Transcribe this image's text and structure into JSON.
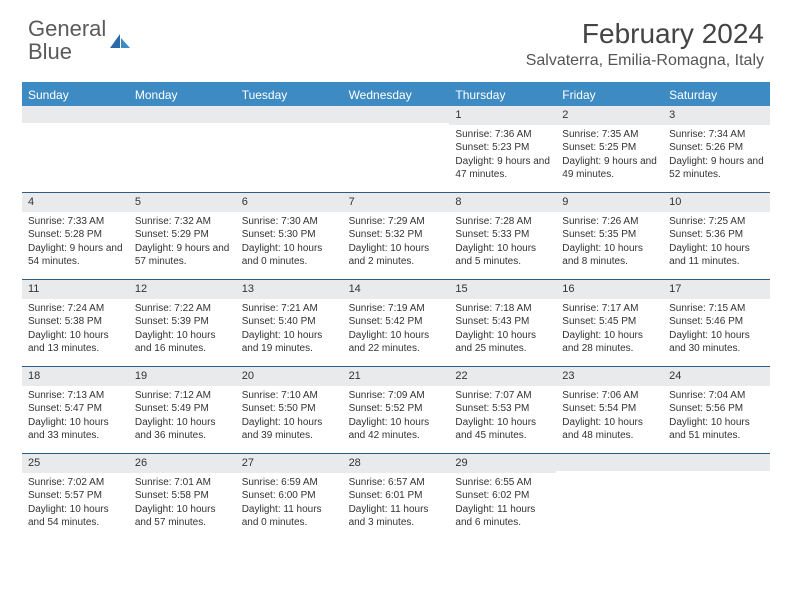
{
  "brand": {
    "word1": "General",
    "word2": "Blue"
  },
  "title": "February 2024",
  "location": "Salvaterra, Emilia-Romagna, Italy",
  "colors": {
    "header_bar": "#3e8bc4",
    "week_divider": "#2a5e8a",
    "daynum_bg": "#e8eaec",
    "text": "#333333",
    "brand_blue": "#3178b8"
  },
  "dow": [
    "Sunday",
    "Monday",
    "Tuesday",
    "Wednesday",
    "Thursday",
    "Friday",
    "Saturday"
  ],
  "weeks": [
    [
      {
        "n": "",
        "sr": "",
        "ss": "",
        "dl": ""
      },
      {
        "n": "",
        "sr": "",
        "ss": "",
        "dl": ""
      },
      {
        "n": "",
        "sr": "",
        "ss": "",
        "dl": ""
      },
      {
        "n": "",
        "sr": "",
        "ss": "",
        "dl": ""
      },
      {
        "n": "1",
        "sr": "Sunrise: 7:36 AM",
        "ss": "Sunset: 5:23 PM",
        "dl": "Daylight: 9 hours and 47 minutes."
      },
      {
        "n": "2",
        "sr": "Sunrise: 7:35 AM",
        "ss": "Sunset: 5:25 PM",
        "dl": "Daylight: 9 hours and 49 minutes."
      },
      {
        "n": "3",
        "sr": "Sunrise: 7:34 AM",
        "ss": "Sunset: 5:26 PM",
        "dl": "Daylight: 9 hours and 52 minutes."
      }
    ],
    [
      {
        "n": "4",
        "sr": "Sunrise: 7:33 AM",
        "ss": "Sunset: 5:28 PM",
        "dl": "Daylight: 9 hours and 54 minutes."
      },
      {
        "n": "5",
        "sr": "Sunrise: 7:32 AM",
        "ss": "Sunset: 5:29 PM",
        "dl": "Daylight: 9 hours and 57 minutes."
      },
      {
        "n": "6",
        "sr": "Sunrise: 7:30 AM",
        "ss": "Sunset: 5:30 PM",
        "dl": "Daylight: 10 hours and 0 minutes."
      },
      {
        "n": "7",
        "sr": "Sunrise: 7:29 AM",
        "ss": "Sunset: 5:32 PM",
        "dl": "Daylight: 10 hours and 2 minutes."
      },
      {
        "n": "8",
        "sr": "Sunrise: 7:28 AM",
        "ss": "Sunset: 5:33 PM",
        "dl": "Daylight: 10 hours and 5 minutes."
      },
      {
        "n": "9",
        "sr": "Sunrise: 7:26 AM",
        "ss": "Sunset: 5:35 PM",
        "dl": "Daylight: 10 hours and 8 minutes."
      },
      {
        "n": "10",
        "sr": "Sunrise: 7:25 AM",
        "ss": "Sunset: 5:36 PM",
        "dl": "Daylight: 10 hours and 11 minutes."
      }
    ],
    [
      {
        "n": "11",
        "sr": "Sunrise: 7:24 AM",
        "ss": "Sunset: 5:38 PM",
        "dl": "Daylight: 10 hours and 13 minutes."
      },
      {
        "n": "12",
        "sr": "Sunrise: 7:22 AM",
        "ss": "Sunset: 5:39 PM",
        "dl": "Daylight: 10 hours and 16 minutes."
      },
      {
        "n": "13",
        "sr": "Sunrise: 7:21 AM",
        "ss": "Sunset: 5:40 PM",
        "dl": "Daylight: 10 hours and 19 minutes."
      },
      {
        "n": "14",
        "sr": "Sunrise: 7:19 AM",
        "ss": "Sunset: 5:42 PM",
        "dl": "Daylight: 10 hours and 22 minutes."
      },
      {
        "n": "15",
        "sr": "Sunrise: 7:18 AM",
        "ss": "Sunset: 5:43 PM",
        "dl": "Daylight: 10 hours and 25 minutes."
      },
      {
        "n": "16",
        "sr": "Sunrise: 7:17 AM",
        "ss": "Sunset: 5:45 PM",
        "dl": "Daylight: 10 hours and 28 minutes."
      },
      {
        "n": "17",
        "sr": "Sunrise: 7:15 AM",
        "ss": "Sunset: 5:46 PM",
        "dl": "Daylight: 10 hours and 30 minutes."
      }
    ],
    [
      {
        "n": "18",
        "sr": "Sunrise: 7:13 AM",
        "ss": "Sunset: 5:47 PM",
        "dl": "Daylight: 10 hours and 33 minutes."
      },
      {
        "n": "19",
        "sr": "Sunrise: 7:12 AM",
        "ss": "Sunset: 5:49 PM",
        "dl": "Daylight: 10 hours and 36 minutes."
      },
      {
        "n": "20",
        "sr": "Sunrise: 7:10 AM",
        "ss": "Sunset: 5:50 PM",
        "dl": "Daylight: 10 hours and 39 minutes."
      },
      {
        "n": "21",
        "sr": "Sunrise: 7:09 AM",
        "ss": "Sunset: 5:52 PM",
        "dl": "Daylight: 10 hours and 42 minutes."
      },
      {
        "n": "22",
        "sr": "Sunrise: 7:07 AM",
        "ss": "Sunset: 5:53 PM",
        "dl": "Daylight: 10 hours and 45 minutes."
      },
      {
        "n": "23",
        "sr": "Sunrise: 7:06 AM",
        "ss": "Sunset: 5:54 PM",
        "dl": "Daylight: 10 hours and 48 minutes."
      },
      {
        "n": "24",
        "sr": "Sunrise: 7:04 AM",
        "ss": "Sunset: 5:56 PM",
        "dl": "Daylight: 10 hours and 51 minutes."
      }
    ],
    [
      {
        "n": "25",
        "sr": "Sunrise: 7:02 AM",
        "ss": "Sunset: 5:57 PM",
        "dl": "Daylight: 10 hours and 54 minutes."
      },
      {
        "n": "26",
        "sr": "Sunrise: 7:01 AM",
        "ss": "Sunset: 5:58 PM",
        "dl": "Daylight: 10 hours and 57 minutes."
      },
      {
        "n": "27",
        "sr": "Sunrise: 6:59 AM",
        "ss": "Sunset: 6:00 PM",
        "dl": "Daylight: 11 hours and 0 minutes."
      },
      {
        "n": "28",
        "sr": "Sunrise: 6:57 AM",
        "ss": "Sunset: 6:01 PM",
        "dl": "Daylight: 11 hours and 3 minutes."
      },
      {
        "n": "29",
        "sr": "Sunrise: 6:55 AM",
        "ss": "Sunset: 6:02 PM",
        "dl": "Daylight: 11 hours and 6 minutes."
      },
      {
        "n": "",
        "sr": "",
        "ss": "",
        "dl": ""
      },
      {
        "n": "",
        "sr": "",
        "ss": "",
        "dl": ""
      }
    ]
  ]
}
